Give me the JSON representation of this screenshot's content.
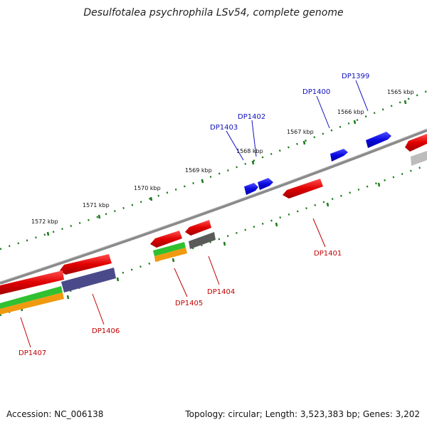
{
  "title": "Desulfotalea psychrophila LSv54, complete genome",
  "footer": {
    "accession": "Accession: NC_006138",
    "summary": "Topology: circular; Length: 3,523,383 bp; Genes: 3,202"
  },
  "scale_labels": [
    "1565 kbp",
    "1566 kbp",
    "1567 kbp",
    "1568 kbp",
    "1569 kbp",
    "1570 kbp",
    "1571 kbp",
    "1572 kbp"
  ],
  "genes_upper": [
    "DP1399",
    "DP1400",
    "DP1402",
    "DP1403"
  ],
  "genes_lower": [
    "DP1401",
    "DP1404",
    "DP1405",
    "DP1406",
    "DP1407"
  ],
  "colors": {
    "backbone": "#7a7a7a",
    "tick": "#1a7a1a",
    "forward_gene": "#0a0ae0",
    "reverse_gene": "#e00000",
    "green_track": "#30c030",
    "orange_track": "#f09a10",
    "purple_track": "#4a4a8a",
    "gray_track": "#666666"
  }
}
